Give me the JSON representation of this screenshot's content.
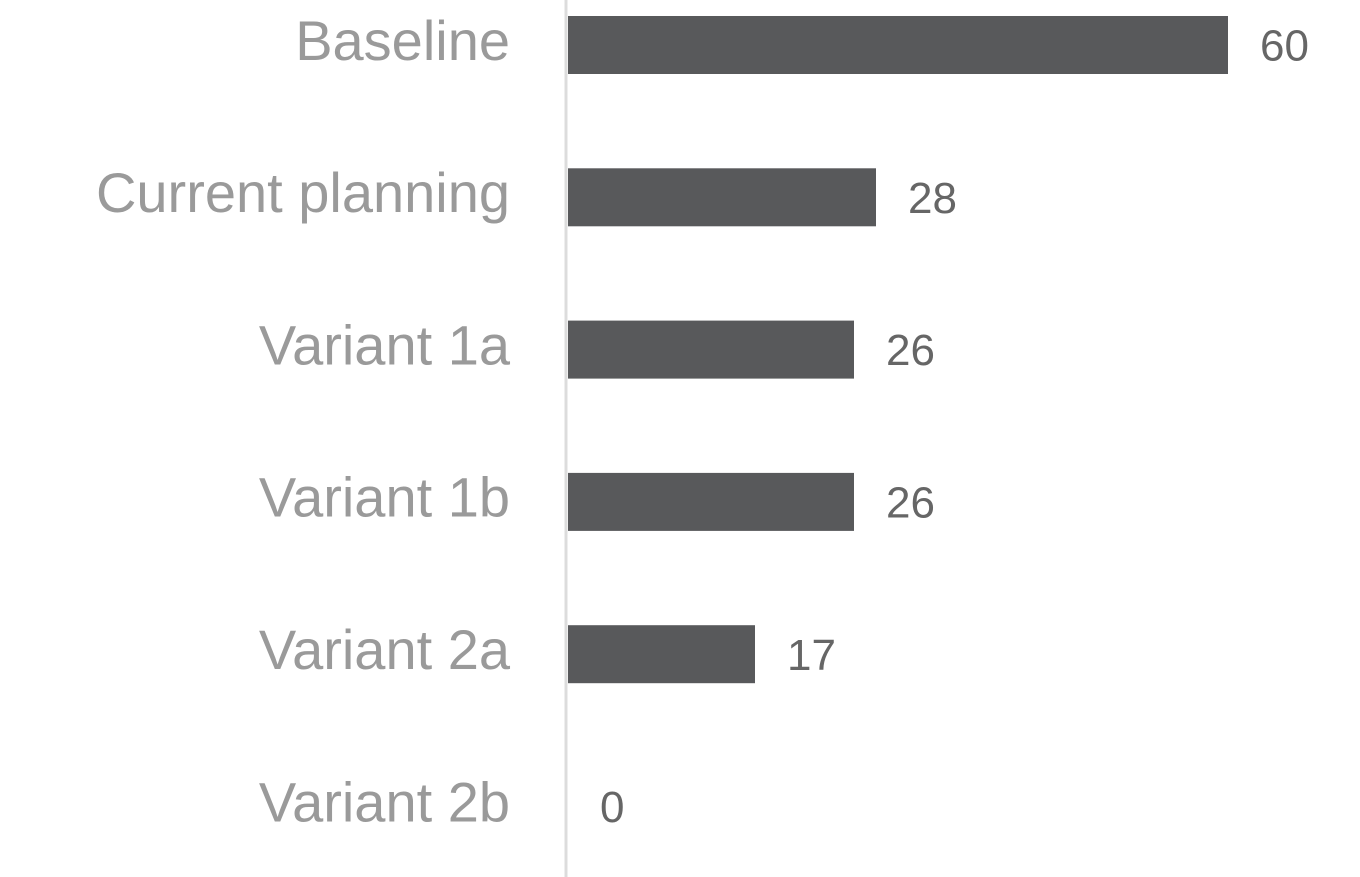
{
  "chart_data": {
    "type": "bar",
    "orientation": "horizontal",
    "categories": [
      "Baseline",
      "Current planning",
      "Variant 1a",
      "Variant 1b",
      "Variant 2a",
      "Variant 2b"
    ],
    "values": [
      60,
      28,
      26,
      26,
      17,
      0
    ],
    "color": "#58595b"
  }
}
